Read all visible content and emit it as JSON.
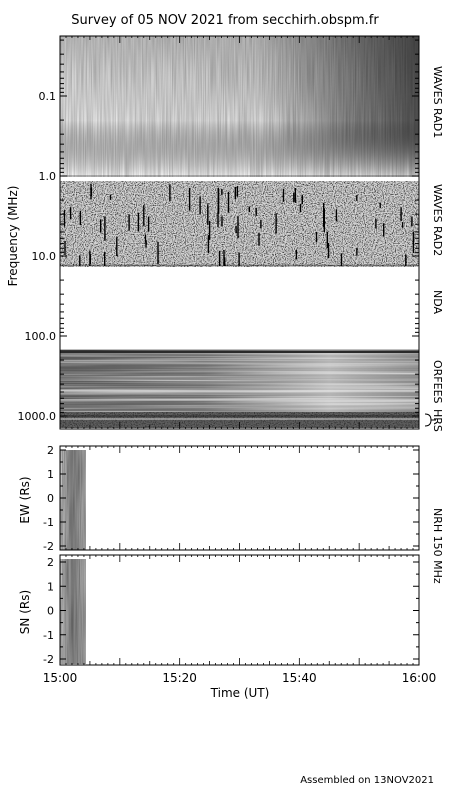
{
  "title": "Survey of 05 NOV 2021 from secchirh.obspm.fr",
  "footer": "Assembled on 13NOV2021",
  "colors": {
    "ink": "#000000",
    "background": "#ffffff",
    "spectrogram_min": "#ffffff",
    "spectrogram_max": "#000000"
  },
  "chart_data": [
    {
      "type": "heatmap",
      "name": "spectrogram-stack",
      "ylabel": "Frequency (MHz)",
      "yscale": "log",
      "ylim": [
        0.02,
        1500
      ],
      "yticks": [
        "0.1",
        "1.0",
        "10.0",
        "100.0",
        "1000.0"
      ],
      "xlim": [
        "15:00",
        "16:00"
      ],
      "bands": [
        {
          "label": "WAVES RAD1",
          "freq_range": [
            0.02,
            1.0
          ]
        },
        {
          "label": "WAVES RAD2",
          "freq_range": [
            1.0,
            13.0
          ]
        },
        {
          "label": "NDA",
          "freq_range": [
            13.0,
            150.0
          ]
        },
        {
          "label": "ORFEES",
          "freq_range": [
            150.0,
            1000.0
          ]
        },
        {
          "label": "HRS",
          "freq_range": [
            1000.0,
            1500.0
          ]
        }
      ]
    },
    {
      "type": "heatmap",
      "name": "nrh-ew",
      "ylabel": "EW (Rs)",
      "ylim": [
        -2,
        2
      ],
      "yticks": [
        "2",
        "1",
        "0",
        "-1",
        "-2"
      ],
      "data_coverage": [
        "15:00",
        "15:04"
      ]
    },
    {
      "type": "heatmap",
      "name": "nrh-sn",
      "ylabel": "SN (Rs)",
      "ylim": [
        -2,
        2
      ],
      "yticks": [
        "2",
        "1",
        "0",
        "-1",
        "-2"
      ],
      "data_coverage": [
        "15:00",
        "15:04"
      ],
      "xticks": [
        "15:00",
        "15:20",
        "15:40",
        "16:00"
      ],
      "xlabel": "Time (UT)"
    }
  ],
  "nrh_label": "NRH 150 MHz"
}
